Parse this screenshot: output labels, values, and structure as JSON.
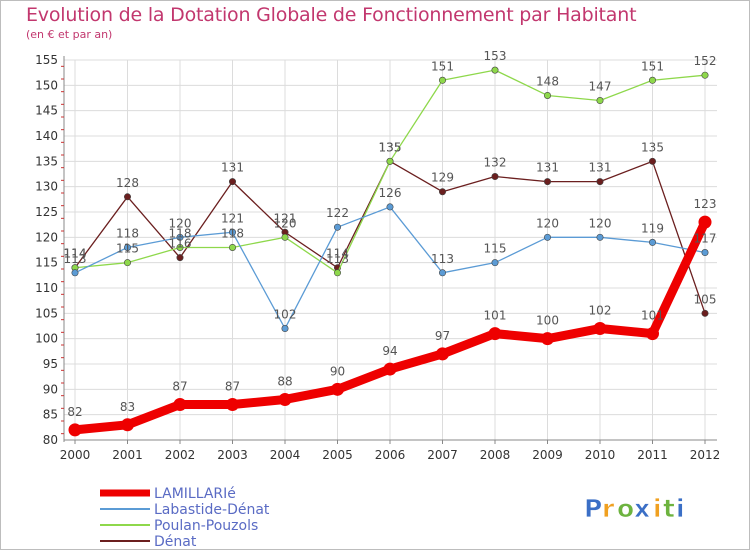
{
  "chart_data": {
    "type": "line",
    "title": "Evolution de la Dotation Globale de Fonctionnement par Habitant",
    "subtitle": "(en € et par an)",
    "xlabel": "",
    "ylabel": "",
    "x": [
      "2000",
      "2001",
      "2002",
      "2003",
      "2004",
      "2005",
      "2006",
      "2007",
      "2008",
      "2009",
      "2010",
      "2011",
      "2012"
    ],
    "ylim": [
      80,
      155
    ],
    "yticks": [
      80,
      85,
      90,
      95,
      100,
      105,
      110,
      115,
      120,
      125,
      130,
      135,
      140,
      145,
      150,
      155
    ],
    "grid": true,
    "legend_position": "bottom-left",
    "series": [
      {
        "name": "LAMILLARIé",
        "color": "#ee0000",
        "values": [
          82,
          83,
          87,
          87,
          88,
          90,
          94,
          97,
          101,
          100,
          102,
          101,
          123
        ]
      },
      {
        "name": "Labastide-Dénat",
        "color": "#5b9bd5",
        "values": [
          113,
          118,
          120,
          121,
          102,
          122,
          126,
          113,
          115,
          120,
          120,
          119,
          117
        ]
      },
      {
        "name": "Poulan-Pouzols",
        "color": "#8ed84b",
        "values": [
          114,
          115,
          118,
          118,
          120,
          113,
          135,
          151,
          153,
          148,
          147,
          151,
          152
        ]
      },
      {
        "name": "Dénat",
        "color": "#6b1f1f",
        "values": [
          114,
          128,
          116,
          131,
          121,
          114,
          135,
          129,
          132,
          131,
          131,
          135,
          105
        ]
      }
    ]
  },
  "logo": {
    "letters": [
      "P",
      "r",
      "o",
      "x",
      "i",
      "t",
      "i"
    ],
    "colors": [
      "#3b6fc6",
      "#f0a020",
      "#6db33f",
      "#3b6fc6",
      "#f0a020",
      "#6db33f",
      "#3b6fc6"
    ]
  }
}
